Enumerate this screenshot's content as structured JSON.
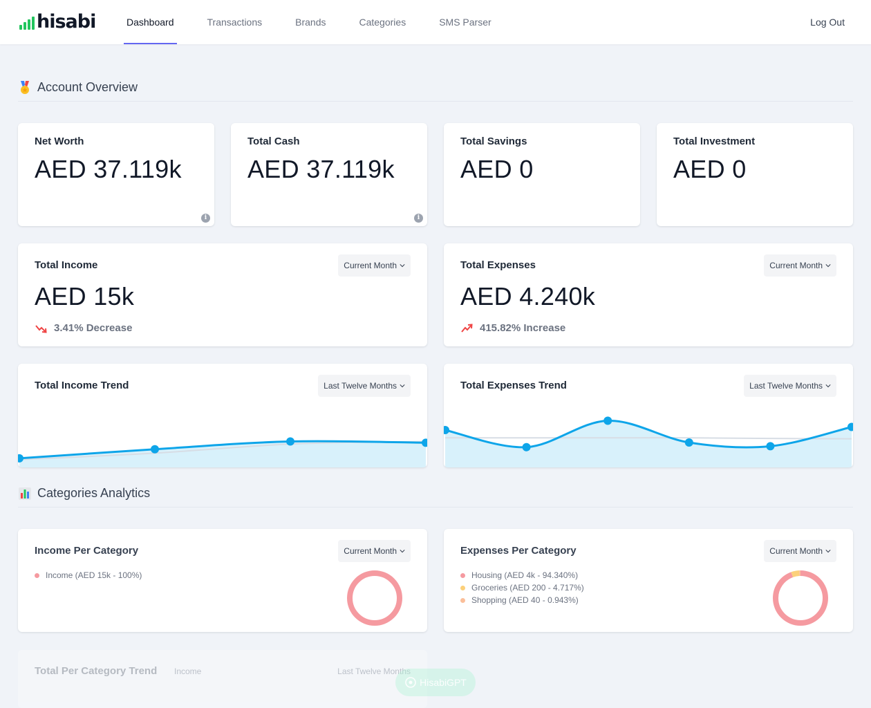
{
  "app": {
    "logo_text": "hisabi"
  },
  "nav": {
    "items": [
      {
        "label": "Dashboard",
        "active": true
      },
      {
        "label": "Transactions",
        "active": false
      },
      {
        "label": "Brands",
        "active": false
      },
      {
        "label": "Categories",
        "active": false
      },
      {
        "label": "SMS Parser",
        "active": false
      }
    ],
    "logout": "Log Out"
  },
  "sections": {
    "overview": {
      "title": "Account Overview",
      "icon": "medal-icon"
    },
    "analytics": {
      "title": "Categories Analytics",
      "icon": "bar-chart-icon"
    }
  },
  "overview_cards": [
    {
      "title": "Net Worth",
      "value": "AED 37.119k",
      "info": true
    },
    {
      "title": "Total Cash",
      "value": "AED 37.119k",
      "info": true
    },
    {
      "title": "Total Savings",
      "value": "AED 0",
      "info": false
    },
    {
      "title": "Total Investment",
      "value": "AED 0",
      "info": false
    }
  ],
  "income": {
    "title": "Total Income",
    "value": "AED 15k",
    "period": "Current Month",
    "change": "3.41% Decrease",
    "change_direction": "down",
    "change_color": "#ef4444"
  },
  "expenses": {
    "title": "Total Expenses",
    "value": "AED 4.240k",
    "period": "Current Month",
    "change": "415.82% Increase",
    "change_direction": "up",
    "change_color": "#ef4444"
  },
  "chart_data": [
    {
      "type": "area",
      "title": "Total Income Trend",
      "period": "Last Twelve Months",
      "series": [
        {
          "name": "Income",
          "values": [
            3.5,
            7,
            10,
            9.5
          ]
        }
      ],
      "baseline": [
        3,
        5.5,
        9,
        10
      ],
      "ylim": [
        0,
        24
      ],
      "color": "#0ea5e9"
    },
    {
      "type": "area",
      "title": "Total Expenses Trend",
      "period": "Last Twelve Months",
      "series": [
        {
          "name": "Expenses",
          "values": [
            10,
            4.5,
            13,
            6,
            4.8,
            11
          ]
        }
      ],
      "baseline": [
        7.5,
        7.5,
        7.5,
        7.5,
        7.3,
        7.2
      ],
      "ylim": [
        -2,
        18
      ],
      "color": "#0ea5e9"
    },
    {
      "type": "pie",
      "title": "Income Per Category",
      "period": "Current Month",
      "slices": [
        {
          "label": "Income (AED 15k - 100%)",
          "value": 100,
          "color": "#f59aa0"
        }
      ]
    },
    {
      "type": "pie",
      "title": "Expenses Per Category",
      "period": "Current Month",
      "slices": [
        {
          "label": "Housing (AED 4k - 94.340%)",
          "value": 94.34,
          "color": "#f59aa0"
        },
        {
          "label": "Groceries (AED 200 - 4.717%)",
          "value": 4.717,
          "color": "#fcd07a"
        },
        {
          "label": "Shopping (AED 40 - 0.943%)",
          "value": 0.943,
          "color": "#fbbf9a"
        }
      ]
    }
  ],
  "category_trend": {
    "title": "Total Per Category Trend",
    "select": "Income",
    "period": "Last Twelve Months"
  },
  "gpt_button": {
    "label": "HisabiGPT"
  }
}
